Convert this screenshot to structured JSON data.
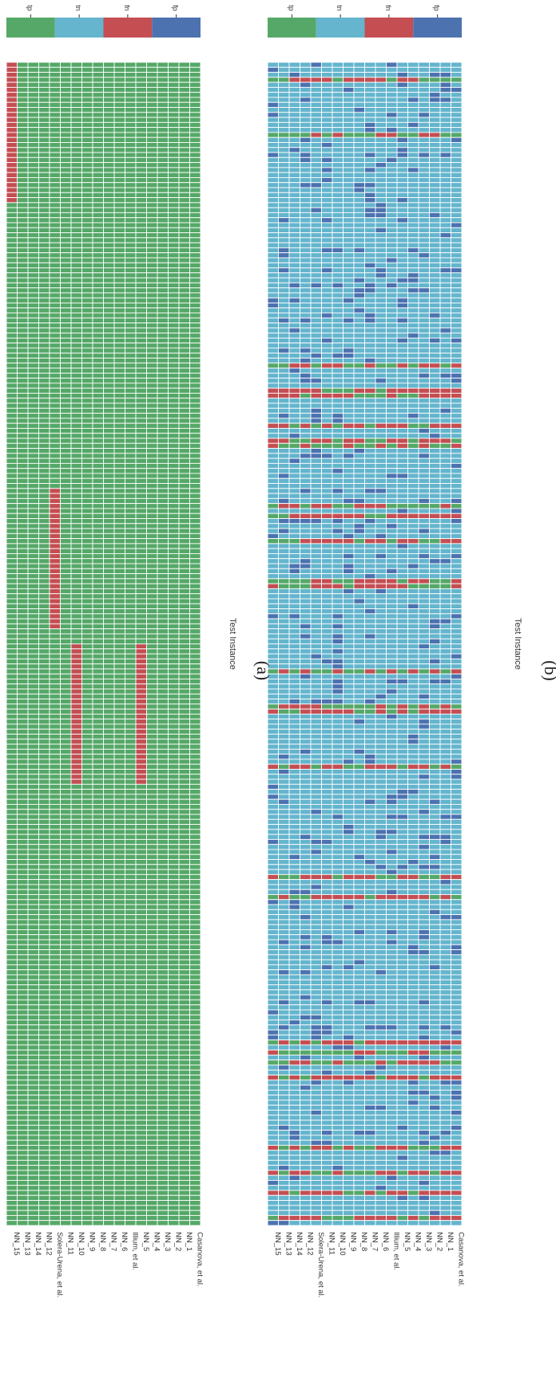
{
  "figure": {
    "subcaptions": [
      "(a)",
      "(b)"
    ]
  },
  "colors": {
    "tp": "#55a868",
    "tn": "#64b5cd",
    "fn": "#c44e52",
    "fp": "#4c72b0",
    "grid": "#ffffff"
  },
  "chart_data": [
    {
      "type": "heatmap",
      "panel": "(a)",
      "xlabel": "Test Instance",
      "row_labels": [
        "NN_15",
        "NN_13",
        "NN_14",
        "NN_12",
        "Solera-Urena, et al.",
        "NN_11",
        "NN_10",
        "NN_9",
        "NN_8",
        "NN_7",
        "NN_6",
        "Illium, et al.",
        "NN_5",
        "NN_4",
        "NN_3",
        "NN_2",
        "NN_1",
        "Casanova, et al."
      ],
      "n_instances": 232,
      "legend": [
        "tp",
        "tn",
        "fn",
        "fp"
      ],
      "default_class": "tp",
      "overrides": [
        {
          "row": 0,
          "from": 0,
          "to": 28,
          "class": "fn"
        },
        {
          "row": 4,
          "from": 85,
          "to": 113,
          "class": "fn"
        },
        {
          "row": 6,
          "from": 116,
          "to": 144,
          "class": "fn"
        },
        {
          "row": 12,
          "from": 116,
          "to": 144,
          "class": "fn"
        }
      ],
      "seed": 0
    },
    {
      "type": "heatmap",
      "panel": "(b)",
      "xlabel": "Test Instance",
      "row_labels": [
        "NN_15",
        "NN_13",
        "NN_14",
        "NN_12",
        "Solera-Urena, et al.",
        "NN_11",
        "NN_10",
        "NN_9",
        "NN_8",
        "NN_7",
        "NN_6",
        "Illium, et al.",
        "NN_5",
        "NN_4",
        "NN_3",
        "NN_2",
        "NN_1",
        "Casanova, et al."
      ],
      "n_instances": 232,
      "legend": [
        "tp",
        "tn",
        "fn",
        "fp"
      ],
      "default_class": "tn",
      "minority_fraction": 0.12,
      "positive_instances": [
        3,
        14,
        60,
        65,
        66,
        72,
        75,
        76,
        88,
        90,
        95,
        103,
        104,
        121,
        128,
        129,
        140,
        162,
        166,
        195,
        197,
        199,
        202,
        216,
        221,
        225,
        230
      ],
      "seed": 7
    }
  ]
}
